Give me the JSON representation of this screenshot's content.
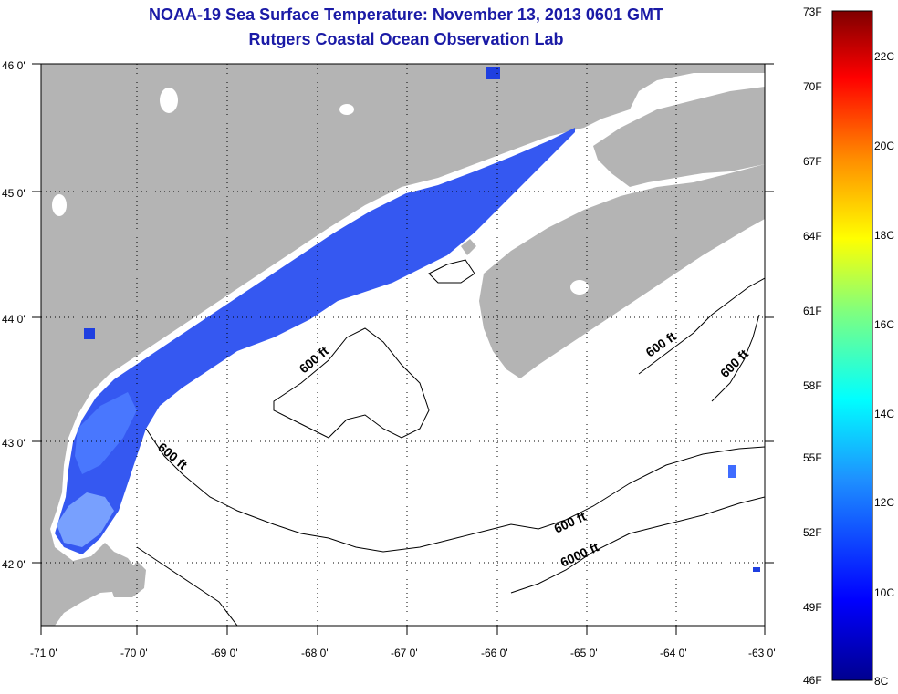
{
  "header": {
    "title": "NOAA-19 Sea Surface Temperature:  November 13, 2013 0601 GMT",
    "subtitle": "Rutgers Coastal Ocean Observation Lab"
  },
  "axes": {
    "lat_labels": [
      "46 0'",
      "45 0'",
      "44 0'",
      "43 0'",
      "42 0'"
    ],
    "lon_labels": [
      "-71 0'",
      "-70 0'",
      "-69 0'",
      "-68 0'",
      "-67 0'",
      "-66 0'",
      "-65 0'",
      "-64 0'",
      "-63 0'"
    ],
    "lat_range": [
      41.5,
      46.0
    ],
    "lon_range": [
      -71.0,
      -63.0
    ]
  },
  "contours": {
    "labels": [
      "600 ft",
      "600 ft",
      "600 ft",
      "600 ft",
      "6000 ft"
    ]
  },
  "colorbar": {
    "fahrenheit_labels": [
      "73F",
      "70F",
      "67F",
      "64F",
      "61F",
      "58F",
      "55F",
      "52F",
      "49F",
      "46F"
    ],
    "celsius_labels": [
      "22C",
      "20C",
      "18C",
      "16C",
      "14C",
      "12C",
      "10C",
      "8C"
    ],
    "range_c": [
      8,
      23
    ]
  },
  "colors": {
    "land": "#b4b4b4",
    "water": "#ffffff",
    "title": "#1a1aa6",
    "sst_cold": "#1f3fe0",
    "sst_mid": "#4b7bff",
    "sst_light": "#8fb8ff"
  }
}
